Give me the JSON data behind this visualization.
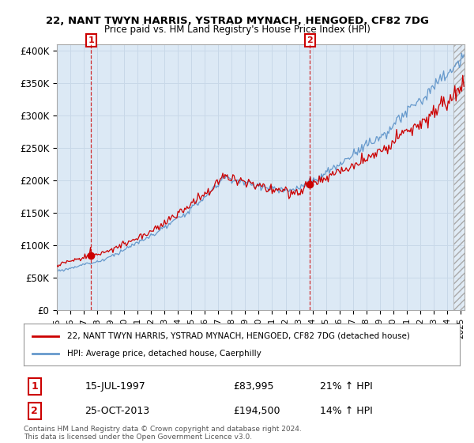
{
  "title": "22, NANT TWYN HARRIS, YSTRAD MYNACH, HENGOED, CF82 7DG",
  "subtitle": "Price paid vs. HM Land Registry's House Price Index (HPI)",
  "ylim": [
    0,
    410000
  ],
  "yticks": [
    0,
    50000,
    100000,
    150000,
    200000,
    250000,
    300000,
    350000,
    400000
  ],
  "ytick_labels": [
    "£0",
    "£50K",
    "£100K",
    "£150K",
    "£200K",
    "£250K",
    "£300K",
    "£350K",
    "£400K"
  ],
  "xlim_start": 1995.0,
  "xlim_end": 2025.3,
  "red_line_color": "#cc0000",
  "blue_line_color": "#6699cc",
  "chart_bg_color": "#dce9f5",
  "marker1_date": 1997.54,
  "marker1_price": 83995,
  "marker2_date": 2013.81,
  "marker2_price": 194500,
  "vline1_x": 1997.54,
  "vline2_x": 2013.81,
  "legend_red_label": "22, NANT TWYN HARRIS, YSTRAD MYNACH, HENGOED, CF82 7DG (detached house)",
  "legend_blue_label": "HPI: Average price, detached house, Caerphilly",
  "point1_date_str": "15-JUL-1997",
  "point1_price_str": "£83,995",
  "point1_hpi_str": "21% ↑ HPI",
  "point2_date_str": "25-OCT-2013",
  "point2_price_str": "£194,500",
  "point2_hpi_str": "14% ↑ HPI",
  "footnote": "Contains HM Land Registry data © Crown copyright and database right 2024.\nThis data is licensed under the Open Government Licence v3.0.",
  "background_color": "#ffffff",
  "grid_color": "#c8d8e8"
}
